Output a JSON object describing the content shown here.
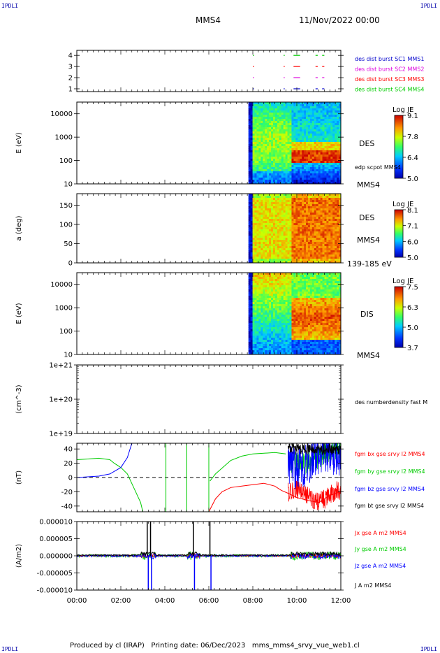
{
  "header": {
    "corner_logo": "IPDLI",
    "spacecraft": "MMS4",
    "date_time": "11/Nov/2022 00:00"
  },
  "footer": {
    "text": "Produced by cl (IRAP)   Printing date: 06/Dec/2023   mms_mms4_srvy_vue_web1.cl"
  },
  "colors": {
    "red": "#ff0000",
    "green": "#00cc00",
    "blue": "#0000ff",
    "black": "#000000",
    "magenta": "#dd00dd",
    "sc1_blue": "#0000cc"
  },
  "chart_data": {
    "type": "multi-panel time series",
    "x_ticks": [
      "00:00",
      "02:00",
      "04:00",
      "06:00",
      "08:00",
      "10:00",
      "12:00"
    ],
    "x_range_hours": [
      0,
      12
    ],
    "panels": [
      {
        "id": "burst_availability",
        "type": "scatter",
        "y_ticks": [
          "1",
          "2",
          "3",
          "4"
        ],
        "legend": [
          {
            "label": "des dist burst SC1 MMS1",
            "color": "#0000cc",
            "level": 1
          },
          {
            "label": "des dist burst SC2 MMS2",
            "color": "#dd00dd",
            "level": 2
          },
          {
            "label": "des dist burst SC3 MMS3",
            "color": "#ff0000",
            "level": 3
          },
          {
            "label": "des dist burst SC4 MMS4",
            "color": "#00cc00",
            "level": 4
          }
        ],
        "bursts_hours": [
          [
            8.0,
            8.05
          ],
          [
            9.4,
            9.45
          ],
          [
            9.85,
            10.15
          ],
          [
            10.85,
            10.95
          ],
          [
            11.15,
            11.25
          ]
        ]
      },
      {
        "id": "des_energy_spectrogram",
        "type": "heatmap",
        "ylabel": "E (eV)",
        "y_ticks": [
          "10",
          "100",
          "1000",
          "10000"
        ],
        "side_label": "DES",
        "overlay_label": "edp scpot MMS4",
        "bottom_label": "MMS4",
        "colorbar": {
          "title": "Log JE",
          "ticks": [
            "9.1",
            "7.8",
            "6.4",
            "5.0"
          ],
          "range": [
            5.0,
            9.1
          ]
        },
        "data_start_hours": 7.8
      },
      {
        "id": "des_pitch_angle",
        "type": "heatmap",
        "ylabel": "a (deg)",
        "y_ticks": [
          "0",
          "50",
          "100",
          "150"
        ],
        "side_label": "DES",
        "side_label2": "MMS4",
        "bottom_label": "139-185 eV",
        "colorbar": {
          "title": "Log JE",
          "ticks": [
            "8.1",
            "7.1",
            "6.0",
            "5.0"
          ],
          "range": [
            5.0,
            8.1
          ]
        },
        "data_start_hours": 7.8
      },
      {
        "id": "dis_energy_spectrogram",
        "type": "heatmap",
        "ylabel": "E (eV)",
        "y_ticks": [
          "10",
          "100",
          "1000",
          "10000"
        ],
        "side_label": "DIS",
        "bottom_label": "MMS4",
        "colorbar": {
          "title": "Log JE",
          "ticks": [
            "7.5",
            "6.3",
            "5.0",
            "3.7"
          ],
          "range": [
            3.7,
            7.5
          ]
        },
        "data_start_hours": 7.8
      },
      {
        "id": "density",
        "type": "line",
        "ylabel": "(cm^-3)",
        "y_ticks": [
          "1e+19",
          "1e+20",
          "1e+21"
        ],
        "legend": [
          {
            "label": "des numberdensity fast M",
            "color": "#000000"
          }
        ]
      },
      {
        "id": "magnetic_field",
        "type": "line",
        "ylabel": "(nT)",
        "y_ticks": [
          "-40",
          "-20",
          "0",
          "20",
          "40"
        ],
        "ylim": [
          -48,
          48
        ],
        "legend": [
          {
            "label": "fgm bx gse srvy l2 MMS4",
            "color": "#ff0000"
          },
          {
            "label": "fgm by gse srvy l2 MMS4",
            "color": "#00cc00"
          },
          {
            "label": "fgm bz gse srvy l2 MMS4",
            "color": "#0000ff"
          },
          {
            "label": "fgm bt gse srvy l2 MMS4",
            "color": "#000000"
          }
        ],
        "series": [
          {
            "name": "fgm by gse srvy l2 MMS4",
            "color": "#00cc00",
            "x": [
              0,
              0.5,
              1,
              1.5,
              1.7,
              2.0,
              2.3,
              2.6,
              2.9,
              3.0
            ],
            "y": [
              25,
              26,
              27,
              25,
              20,
              14,
              5,
              -15,
              -35,
              -48
            ]
          },
          {
            "name": "fgm bz gse srvy l2 MMS4",
            "color": "#0000ff",
            "x": [
              0,
              0.5,
              1.0,
              1.5,
              2.0,
              2.3,
              2.5
            ],
            "y": [
              0,
              1,
              2,
              5,
              14,
              28,
              48
            ]
          },
          {
            "name": "fgm by gse srvy l2 MMS4",
            "color": "#00cc00",
            "x": [
              6.05,
              6.3,
              6.7,
              7.0,
              7.5,
              8.0,
              8.5,
              9.0,
              9.5
            ],
            "y": [
              -5,
              5,
              16,
              24,
              30,
              33,
              34,
              35,
              33
            ]
          },
          {
            "name": "fgm bx gse srvy l2 MMS4",
            "color": "#ff0000",
            "x": [
              6.0,
              6.3,
              6.6,
              7.0,
              7.5,
              8.0,
              8.5,
              9.0,
              9.3,
              9.6,
              10.0,
              10.5,
              11.0,
              11.5,
              12.0
            ],
            "y": [
              -48,
              -30,
              -20,
              -14,
              -12,
              -10,
              -8,
              -12,
              -18,
              -22,
              -28,
              -32,
              -35,
              -25,
              -20
            ]
          }
        ]
      },
      {
        "id": "current_density",
        "type": "line",
        "ylabel": "(A/m2)",
        "y_ticks": [
          "-0.000010",
          "-0.000005",
          "0.000000",
          "0.000005",
          "0.000010"
        ],
        "ylim": [
          -1e-05,
          1e-05
        ],
        "legend": [
          {
            "label": "Jx gse A m2 MMS4",
            "color": "#ff0000"
          },
          {
            "label": "Jy gse A m2 MMS4",
            "color": "#00cc00"
          },
          {
            "label": "Jz gse A m2 MMS4",
            "color": "#0000ff"
          },
          {
            "label": "J A m2 MMS4",
            "color": "#000000"
          }
        ],
        "spikes": [
          {
            "hour": 3.2,
            "J": 1e-05,
            "Jz": -1e-05
          },
          {
            "hour": 3.35,
            "J": 1e-05,
            "Jz": -1e-05
          },
          {
            "hour": 5.3,
            "J": 1e-05,
            "Jz": -1e-05
          },
          {
            "hour": 6.05,
            "J": 1e-05,
            "Jz": -1e-05
          }
        ]
      }
    ]
  }
}
